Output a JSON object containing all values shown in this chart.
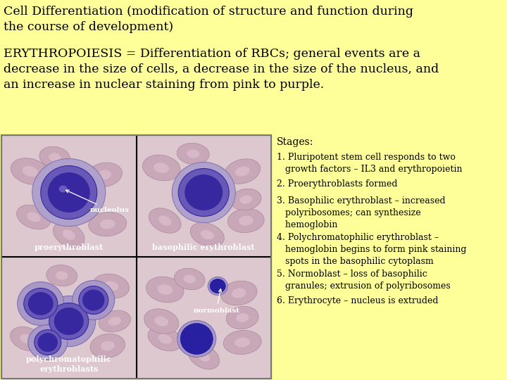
{
  "bg_color": "#FFFF99",
  "title_text": "Cell Differentiation (modification of structure and function during\nthe course of development)",
  "erythro_text": "ERYTHROPOIESIS = Differentiation of RBCs; general events are a\ndecrease in the size of cells, a decrease in the size of the nucleus, and\nan increase in nuclear staining from pink to purple.",
  "stages_label": "Stages:",
  "stages": [
    "1. Pluripotent stem cell responds to two\n   growth factors – IL3 and erythropoietin",
    "2. Proerythroblasts formed",
    "3. Basophilic erythroblast – increased\n   polyribosomes; can synthesize\n   hemoglobin",
    "4. Polychromatophilic erythroblast –\n   hemoglobin begins to form pink staining\n   spots in the basophilic cytoplasm",
    "5. Normoblast – loss of basophilic\n   granules; extrusion of polyribosomes",
    "6. Erythrocyte – nucleus is extruded"
  ],
  "title_fontsize": 12.5,
  "erythro_fontsize": 12.5,
  "stages_label_fontsize": 10,
  "stages_fontsize": 9,
  "text_color": "#000000",
  "img_bg": "#e8d0d8",
  "rbc_color": "#c8a0b0",
  "rbc_edge": "#b08898",
  "nucleus_dark": "#3828a0",
  "nucleus_mid": "#6858b8",
  "nucleus_light": "#9888cc"
}
